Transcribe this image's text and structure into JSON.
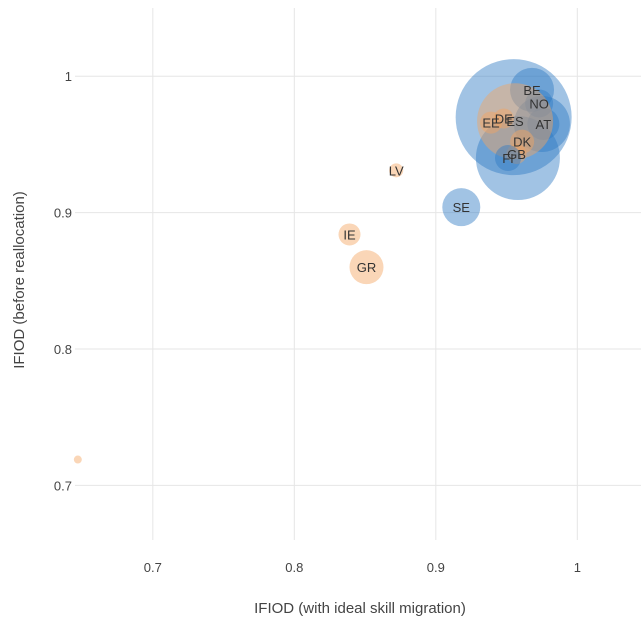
{
  "chart_data": {
    "type": "scatter",
    "title": "",
    "xlabel": "IFIOD (with ideal skill migration)",
    "ylabel": "IFIOD (before reallocation)",
    "xlim": [
      0.645,
      1.045
    ],
    "ylim": [
      0.66,
      1.05
    ],
    "x_ticks": [
      "0.7",
      "0.8",
      "0.9",
      "1"
    ],
    "y_ticks": [
      "0.7",
      "0.8",
      "0.9",
      "1"
    ],
    "grid": true,
    "legend": "none",
    "colors": {
      "blue": "#2e7bc4",
      "orange": "#f4a460"
    },
    "points": [
      {
        "label": "",
        "x": 0.955,
        "y": 0.97,
        "r": 58,
        "color": "blue"
      },
      {
        "label": "",
        "x": 0.958,
        "y": 0.94,
        "r": 42,
        "color": "blue"
      },
      {
        "label": "",
        "x": 0.975,
        "y": 0.965,
        "r": 28,
        "color": "blue"
      },
      {
        "label": "BE",
        "x": 0.968,
        "y": 0.99,
        "r": 22,
        "color": "blue"
      },
      {
        "label": "NO",
        "x": 0.973,
        "y": 0.98,
        "r": 14,
        "color": "blue"
      },
      {
        "label": "AT",
        "x": 0.976,
        "y": 0.965,
        "r": 16,
        "color": "blue"
      },
      {
        "label": "ES",
        "x": 0.956,
        "y": 0.967,
        "r": 38,
        "color": "orange"
      },
      {
        "label": "DE",
        "x": 0.948,
        "y": 0.969,
        "r": 10,
        "color": "orange"
      },
      {
        "label": "EE",
        "x": 0.939,
        "y": 0.966,
        "r": 11,
        "color": "orange"
      },
      {
        "label": "DK",
        "x": 0.961,
        "y": 0.952,
        "r": 12,
        "color": "orange"
      },
      {
        "label": "GB",
        "x": 0.957,
        "y": 0.943,
        "r": 10,
        "color": "orange"
      },
      {
        "label": "FI",
        "x": 0.951,
        "y": 0.94,
        "r": 13,
        "color": "blue"
      },
      {
        "label": "LV",
        "x": 0.872,
        "y": 0.931,
        "r": 7,
        "color": "orange"
      },
      {
        "label": "SE",
        "x": 0.918,
        "y": 0.904,
        "r": 19,
        "color": "blue"
      },
      {
        "label": "IE",
        "x": 0.839,
        "y": 0.884,
        "r": 11,
        "color": "orange"
      },
      {
        "label": "GR",
        "x": 0.851,
        "y": 0.86,
        "r": 17,
        "color": "orange"
      },
      {
        "label": "",
        "x": 0.647,
        "y": 0.719,
        "r": 4,
        "color": "orange"
      }
    ]
  }
}
